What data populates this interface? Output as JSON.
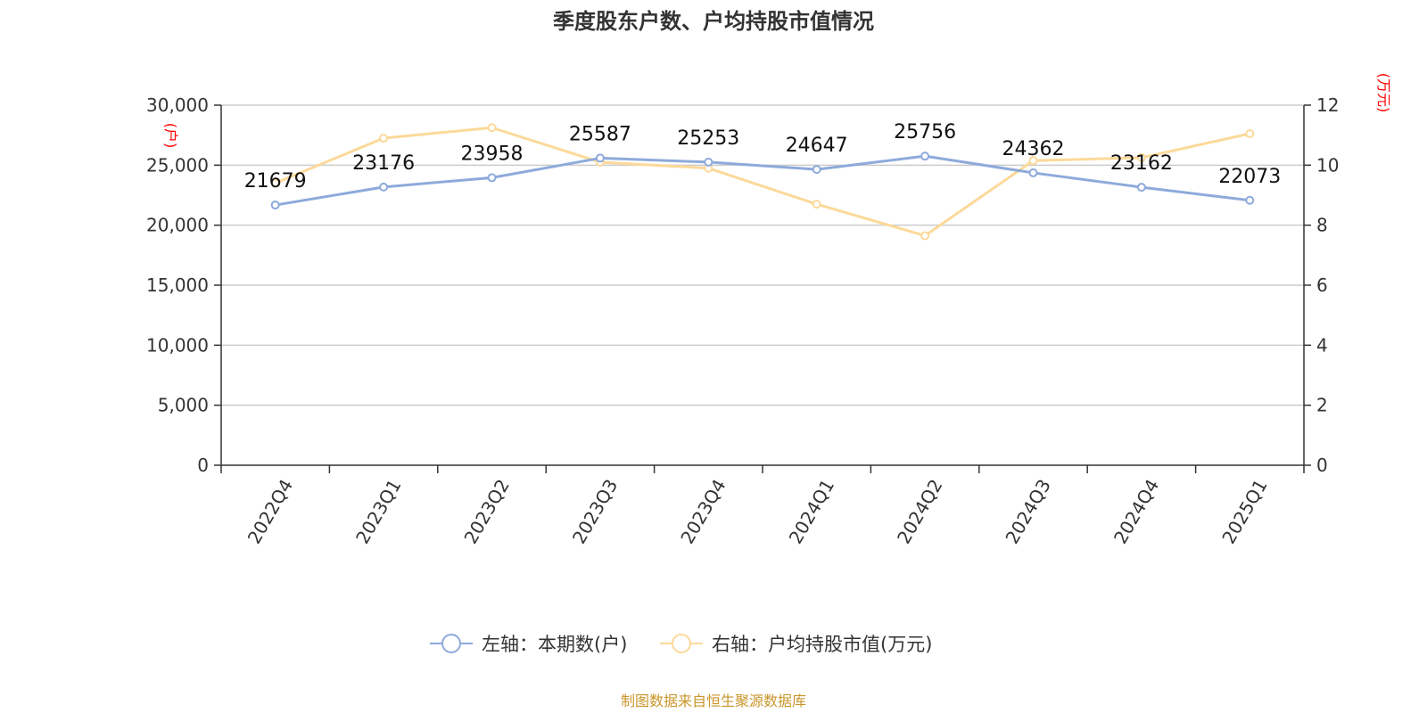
{
  "chart_data": {
    "type": "line",
    "title": "季度股东户数、户均持股市值情况",
    "categories": [
      "2022Q4",
      "2023Q1",
      "2023Q2",
      "2023Q3",
      "2023Q4",
      "2024Q1",
      "2024Q2",
      "2024Q3",
      "2024Q4",
      "2025Q1"
    ],
    "left_axis": {
      "unit": "(户)",
      "ylim": [
        0,
        30000
      ],
      "ticks": [
        "0",
        "5,000",
        "10,000",
        "15,000",
        "20,000",
        "25,000",
        "30,000"
      ]
    },
    "right_axis": {
      "unit": "(万元)",
      "ylim": [
        0,
        12
      ],
      "ticks": [
        "0",
        "2",
        "4",
        "6",
        "8",
        "10",
        "12"
      ]
    },
    "series": [
      {
        "name": "左轴：本期数(户)",
        "axis": "left",
        "color": "#8eaadb",
        "values": [
          21679,
          23176,
          23958,
          25587,
          25253,
          24647,
          25756,
          24362,
          23162,
          22073
        ],
        "labels": [
          "21679",
          "23176",
          "23958",
          "25587",
          "25253",
          "24647",
          "25756",
          "24362",
          "23162",
          "22073"
        ]
      },
      {
        "name": "右轴：户均持股市值(万元)",
        "axis": "right",
        "color": "#fcd999",
        "values": [
          9.4,
          10.9,
          11.25,
          10.1,
          9.9,
          8.7,
          7.65,
          10.15,
          10.25,
          11.05
        ]
      }
    ],
    "grid": true,
    "legend_position": "bottom"
  },
  "source_text": "制图数据来自恒生聚源数据库"
}
